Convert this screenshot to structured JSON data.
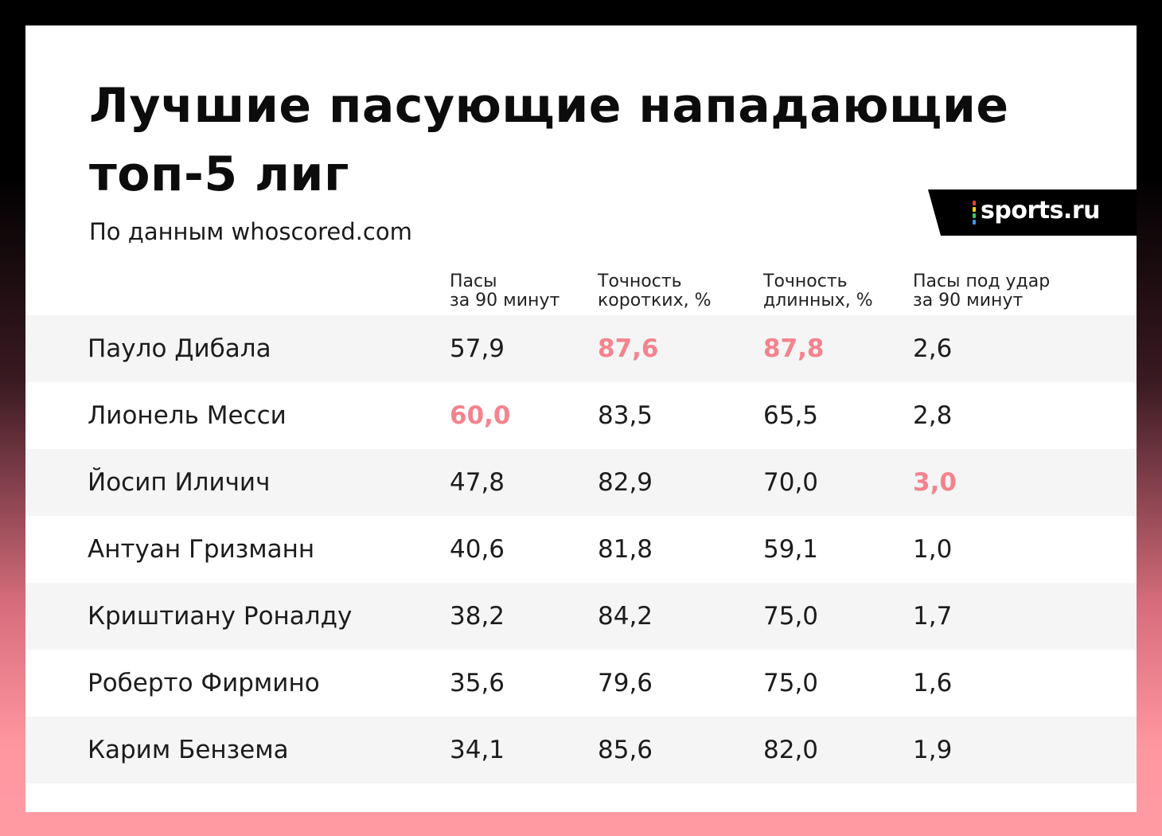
{
  "title_line1": "Лучшие пасующие нападающие",
  "title_line2": "топ-5 лиг",
  "subtitle": "По данным whoscored.com",
  "logo": "sports.ru",
  "colors": {
    "highlight": "#f4838e",
    "row_shade": "#f5f5f5",
    "logo_dots": [
      "#ff3b3b",
      "#ffd400",
      "#33cc66",
      "#3399ff"
    ]
  },
  "chart_data": {
    "type": "table",
    "title": "Лучшие пасующие нападающие топ-5 лиг",
    "subtitle": "По данным whoscored.com",
    "columns": [
      "Пасы\nза 90 минут",
      "Точность\nкоротких, %",
      "Точность\nдлинных, %",
      "Пасы под удар\nза 90 минут"
    ],
    "rows": [
      {
        "name": "Пауло Дибала",
        "values": [
          "57,9",
          "87,6",
          "87,8",
          "2,6"
        ],
        "highlight": [
          false,
          true,
          true,
          false
        ]
      },
      {
        "name": "Лионель Месси",
        "values": [
          "60,0",
          "83,5",
          "65,5",
          "2,8"
        ],
        "highlight": [
          true,
          false,
          false,
          false
        ]
      },
      {
        "name": "Йосип Иличич",
        "values": [
          "47,8",
          "82,9",
          "70,0",
          "3,0"
        ],
        "highlight": [
          false,
          false,
          false,
          true
        ]
      },
      {
        "name": "Антуан Гризманн",
        "values": [
          "40,6",
          "81,8",
          "59,1",
          "1,0"
        ],
        "highlight": [
          false,
          false,
          false,
          false
        ]
      },
      {
        "name": "Криштиану Роналду",
        "values": [
          "38,2",
          "84,2",
          "75,0",
          "1,7"
        ],
        "highlight": [
          false,
          false,
          false,
          false
        ]
      },
      {
        "name": "Роберто Фирмино",
        "values": [
          "35,6",
          "79,6",
          "75,0",
          "1,6"
        ],
        "highlight": [
          false,
          false,
          false,
          false
        ]
      },
      {
        "name": "Карим Бензема",
        "values": [
          "34,1",
          "85,6",
          "82,0",
          "1,9"
        ],
        "highlight": [
          false,
          false,
          false,
          false
        ]
      }
    ]
  }
}
